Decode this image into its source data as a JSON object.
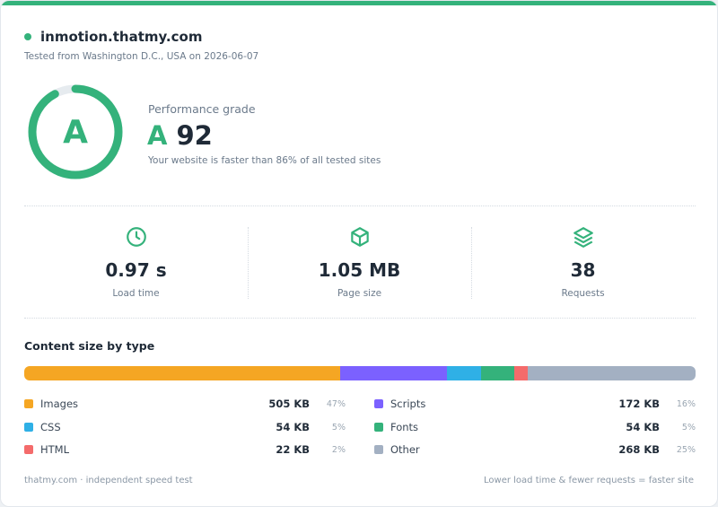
{
  "site": {
    "domain": "inmotion.thatmy.com",
    "tested": "Tested from Washington D.C., USA on 2026-06-07"
  },
  "performance": {
    "label": "Performance grade",
    "grade": "A",
    "score": "92",
    "score_fraction": 0.92,
    "description": "Your website is faster than 86% of all tested sites"
  },
  "metrics": [
    {
      "icon": "clock-icon",
      "value": "0.97 s",
      "label": "Load time"
    },
    {
      "icon": "box-icon",
      "value": "1.05 MB",
      "label": "Page size"
    },
    {
      "icon": "layers-icon",
      "value": "38",
      "label": "Requests"
    }
  ],
  "content": {
    "title": "Content size by type",
    "types": [
      {
        "name": "Images",
        "size": "505 KB",
        "pct": "47%",
        "share": 47,
        "color": "#f5a623"
      },
      {
        "name": "Scripts",
        "size": "172 KB",
        "pct": "16%",
        "share": 16,
        "color": "#7b61ff"
      },
      {
        "name": "CSS",
        "size": "54 KB",
        "pct": "5%",
        "share": 5,
        "color": "#2fb0e6"
      },
      {
        "name": "Fonts",
        "size": "54 KB",
        "pct": "5%",
        "share": 5,
        "color": "#34b27b"
      },
      {
        "name": "HTML",
        "size": "22 KB",
        "pct": "2%",
        "share": 2,
        "color": "#f46b6b"
      },
      {
        "name": "Other",
        "size": "268 KB",
        "pct": "25%",
        "share": 25,
        "color": "#a3b0c2"
      }
    ]
  },
  "footer": {
    "left": "thatmy.com · independent speed test",
    "right": "Lower load time & fewer requests = faster site"
  },
  "colors": {
    "accent": "#34b27b",
    "track": "#e6ebef"
  }
}
